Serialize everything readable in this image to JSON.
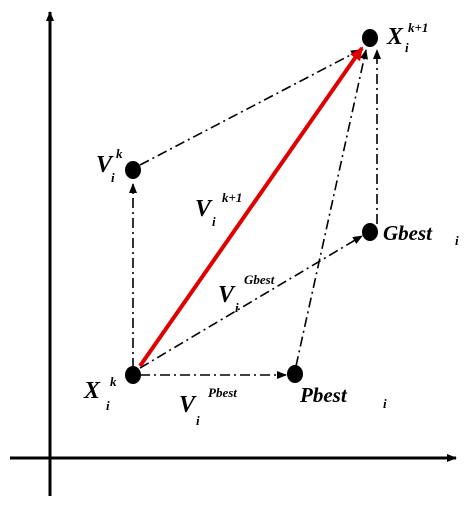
{
  "labels": [
    {
      "main": "X",
      "sub": "i",
      "sup": "k"
    },
    {
      "main": "V",
      "sub": "i",
      "sup": "k"
    },
    {
      "main": "X",
      "sub": "i",
      "sup": "k+1"
    },
    {
      "main": "Gbest",
      "sub": "i"
    },
    {
      "main": "Pbest",
      "sub": "i"
    },
    {
      "main": "V",
      "sub": "i",
      "sup": "k+1"
    },
    {
      "main": "V",
      "sub": "i",
      "sup": "Gbest"
    },
    {
      "main": "V",
      "sub": "i",
      "sup": "Pbest"
    }
  ]
}
